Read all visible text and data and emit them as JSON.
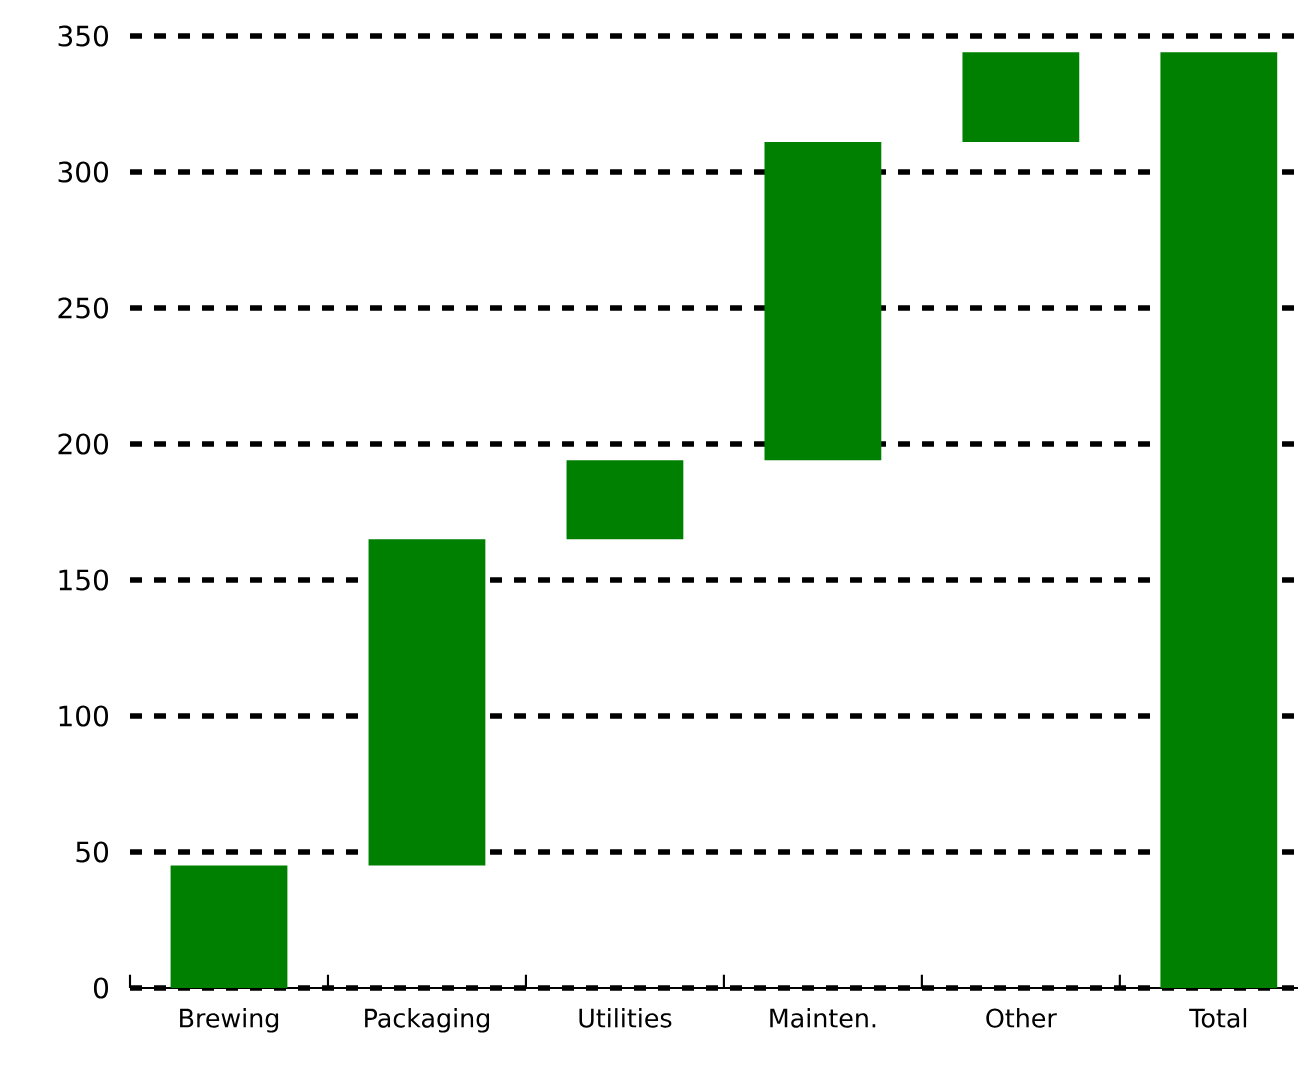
{
  "chart_data": {
    "type": "bar",
    "categories": [
      "Brewing",
      "Packaging",
      "Utilities",
      "Mainten.",
      "Other",
      "Total"
    ],
    "values": [
      45,
      120,
      29,
      117,
      33,
      344
    ],
    "base": [
      0,
      45,
      165,
      194,
      311,
      0
    ],
    "color": "#008000",
    "ylim": [
      0,
      350
    ],
    "yticks": [
      0,
      50,
      100,
      150,
      200,
      250,
      300,
      350
    ],
    "grid": "y"
  }
}
